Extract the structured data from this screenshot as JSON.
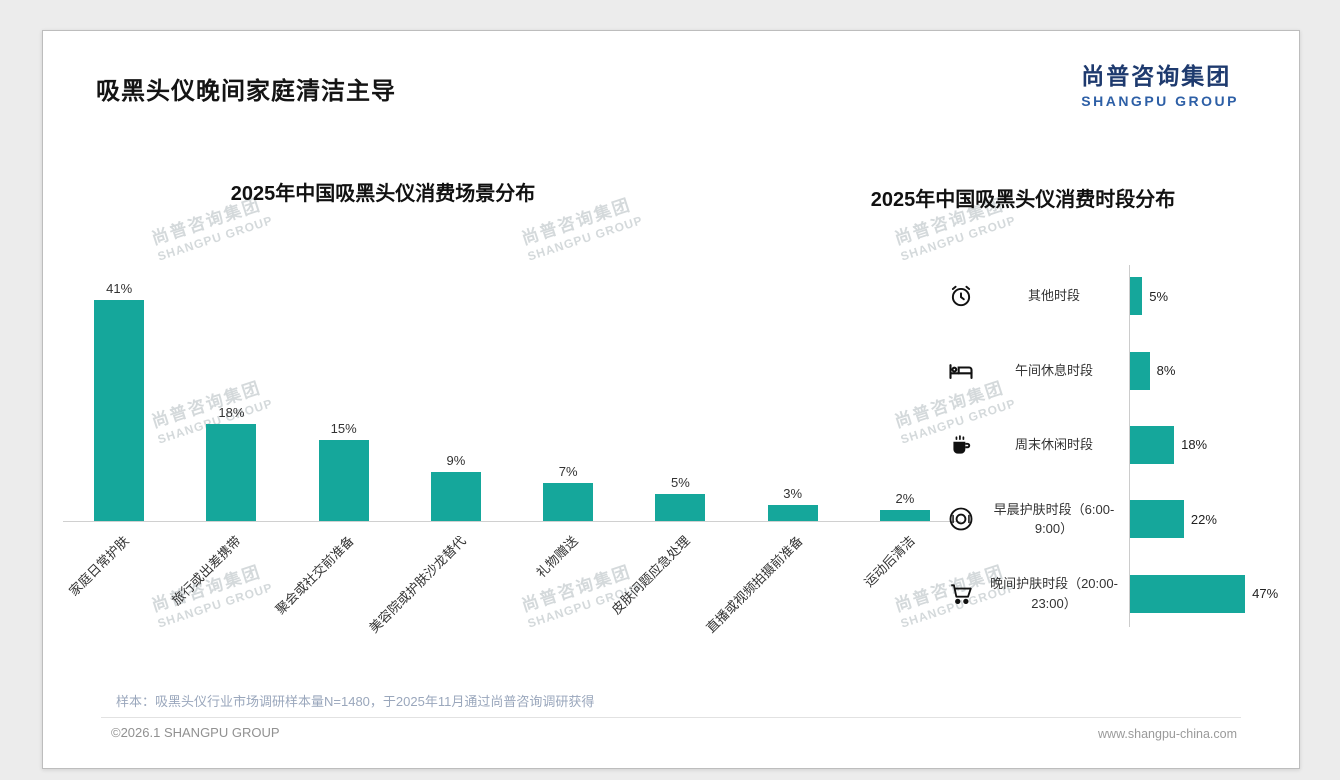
{
  "page": {
    "title": "吸黑头仪晚间家庭清洁主导",
    "logo": {
      "cn": "尚普咨询集团",
      "en": "SHANGPU GROUP"
    },
    "watermark": {
      "cn": "尚普咨询集团",
      "en": "SHANGPU GROUP"
    },
    "footnote": "样本：吸黑头仪行业市场调研样本量N=1480，于2025年11月通过尚普咨询调研获得",
    "footer_left": "©2026.1 SHANGPU GROUP",
    "footer_right": "www.shangpu-china.com",
    "accent_color": "#15A79B"
  },
  "chart_data": [
    {
      "type": "bar",
      "orientation": "vertical",
      "title": "2025年中国吸黑头仪消费场景分布",
      "categories": [
        "家庭日常护肤",
        "旅行或出差携带",
        "聚会或社交前准备",
        "美容院或护肤沙龙替代",
        "礼物赠送",
        "皮肤问题应急处理",
        "直播或视频拍摄前准备",
        "运动后清洁"
      ],
      "values": [
        41,
        18,
        15,
        9,
        7,
        5,
        3,
        2
      ],
      "unit": "%",
      "bar_color": "#15A79B",
      "ylim": [
        0,
        45
      ],
      "grid": false,
      "value_labels": "above bars"
    },
    {
      "type": "bar",
      "orientation": "horizontal",
      "title": "2025年中国吸黑头仪消费时段分布",
      "categories": [
        "其他时段",
        "午间休息时段",
        "周末休闲时段",
        "早晨护肤时段（6:00-9:00）",
        "晚间护肤时段（20:00-23:00）"
      ],
      "values": [
        5,
        8,
        18,
        22,
        47
      ],
      "icons": [
        "alarm-clock",
        "bed",
        "coffee",
        "dining-plate",
        "shopping-cart"
      ],
      "unit": "%",
      "bar_color": "#15A79B",
      "xlim": [
        0,
        50
      ],
      "grid": false,
      "value_labels": "right of bars"
    }
  ]
}
